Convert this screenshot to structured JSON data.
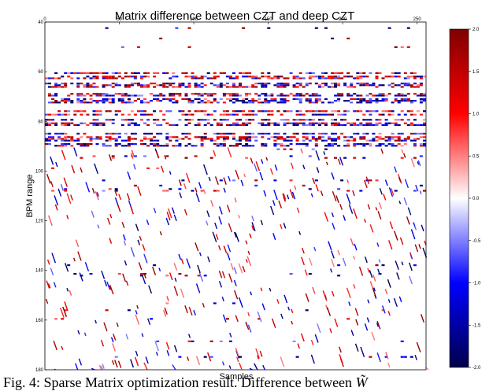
{
  "chart_data": {
    "type": "heatmap",
    "title": "Matrix difference between CZT and deep CZT",
    "xlabel": "Samples",
    "ylabel": "BPM range",
    "x_ticks": [
      "0",
      "50",
      "100",
      "150",
      "200",
      "250"
    ],
    "x_range": [
      0,
      256
    ],
    "y_ticks": [
      "40",
      "60",
      "80",
      "100",
      "120",
      "140",
      "160",
      "180"
    ],
    "y_range": [
      40,
      180
    ],
    "colorbar": {
      "ticks": [
        "2.0",
        "1.5",
        "1.0",
        "0.5",
        "0.0",
        "-0.5",
        "-1.0",
        "-1.5",
        "-2.0"
      ],
      "range": [
        -2.0,
        2.0
      ],
      "colormap": "seismic",
      "low_color": "#00004c",
      "mid_color": "#ffffff",
      "high_color": "#800000"
    },
    "structure": {
      "dense_band_bpm": [
        60,
        90
      ],
      "sparse_region_bpm": [
        90,
        180
      ],
      "pattern": "dense alternating red/blue horizontal streaks in the top band; sparse diagonal streaks below"
    }
  },
  "caption": {
    "prefix": "Fig. 4: Sparse Matrix optimization result. Difference between ",
    "symbol": "W̃"
  }
}
